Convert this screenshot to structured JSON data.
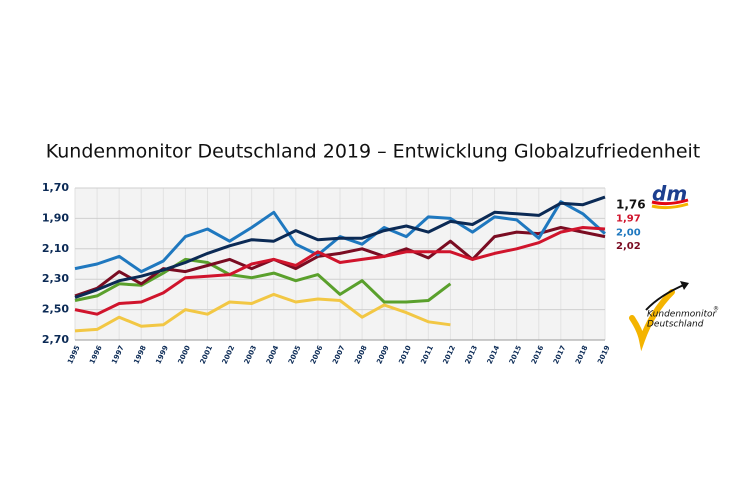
{
  "chart_data": {
    "type": "line",
    "title": "Kundenmonitor Deutschland 2019 – Entwicklung Globalzufriedenheit",
    "categories": [
      "1995",
      "1996",
      "1997",
      "1998",
      "1999",
      "2000",
      "2001",
      "2002",
      "2003",
      "2004",
      "2005",
      "2006",
      "2007",
      "2008",
      "2009",
      "2010",
      "2011",
      "2012",
      "2013",
      "2014",
      "2015",
      "2016",
      "2017",
      "2018",
      "2019"
    ],
    "ylim": [
      1.7,
      2.7
    ],
    "y_inverted": true,
    "yticks": [
      {
        "value": 1.7,
        "label": "1,70"
      },
      {
        "value": 1.9,
        "label": "1,90"
      },
      {
        "value": 2.1,
        "label": "2,10"
      },
      {
        "value": 2.3,
        "label": "2,30"
      },
      {
        "value": 2.5,
        "label": "2,50"
      },
      {
        "value": 2.7,
        "label": "2,70"
      }
    ],
    "grid": true,
    "logo_text": [
      "Kundenmonitor",
      "®",
      "Deutschland"
    ],
    "series": [
      {
        "name": "dm",
        "color": "#0b2a55",
        "values": [
          2.42,
          2.37,
          2.31,
          2.28,
          2.24,
          2.19,
          2.13,
          2.08,
          2.04,
          2.05,
          1.98,
          2.04,
          2.03,
          2.03,
          1.98,
          1.95,
          1.99,
          1.92,
          1.94,
          1.86,
          1.87,
          1.88,
          1.8,
          1.81,
          1.76
        ],
        "value_labels": [
          null,
          null,
          null,
          null,
          null,
          null,
          null,
          null,
          null,
          null,
          null,
          null,
          null,
          null,
          null,
          null,
          null,
          null,
          null,
          null,
          null,
          null,
          null,
          null,
          "1,76"
        ]
      },
      {
        "color": "#d0142c",
        "values": [
          2.5,
          2.53,
          2.46,
          2.45,
          2.39,
          2.29,
          2.28,
          2.27,
          2.2,
          2.17,
          2.21,
          2.12,
          2.19,
          2.17,
          2.15,
          2.12,
          2.12,
          2.12,
          2.17,
          2.13,
          2.1,
          2.06,
          1.99,
          1.96,
          1.97
        ],
        "value_labels": [
          null,
          null,
          null,
          null,
          null,
          null,
          null,
          null,
          null,
          null,
          null,
          null,
          null,
          null,
          null,
          null,
          null,
          null,
          null,
          null,
          null,
          null,
          null,
          null,
          "1,97"
        ]
      },
      {
        "color": "#1f78bf",
        "values": [
          2.23,
          2.2,
          2.15,
          2.25,
          2.18,
          2.02,
          1.97,
          2.05,
          1.96,
          1.86,
          2.07,
          2.14,
          2.02,
          2.07,
          1.96,
          2.02,
          1.89,
          1.9,
          1.99,
          1.89,
          1.91,
          2.03,
          1.79,
          1.87,
          2.0
        ],
        "value_labels": [
          null,
          null,
          null,
          null,
          null,
          null,
          null,
          null,
          null,
          null,
          null,
          null,
          null,
          null,
          null,
          null,
          null,
          null,
          null,
          null,
          null,
          null,
          null,
          null,
          "2,00"
        ]
      },
      {
        "color": "#7a0c22",
        "values": [
          2.41,
          2.36,
          2.25,
          2.33,
          2.23,
          2.25,
          2.21,
          2.17,
          2.23,
          2.17,
          2.23,
          2.15,
          2.13,
          2.1,
          2.15,
          2.1,
          2.16,
          2.05,
          2.17,
          2.02,
          1.99,
          2.0,
          1.96,
          1.99,
          2.02
        ],
        "value_labels": [
          null,
          null,
          null,
          null,
          null,
          null,
          null,
          null,
          null,
          null,
          null,
          null,
          null,
          null,
          null,
          null,
          null,
          null,
          null,
          null,
          null,
          null,
          null,
          null,
          "2,02"
        ]
      },
      {
        "color": "#5aa02c",
        "values": [
          2.44,
          2.41,
          2.33,
          2.34,
          2.26,
          2.17,
          2.19,
          2.27,
          2.29,
          2.26,
          2.31,
          2.27,
          2.4,
          2.31,
          2.45,
          2.45,
          2.44,
          2.33,
          null,
          null,
          null,
          null,
          null,
          null,
          null
        ]
      },
      {
        "color": "#f2c744",
        "values": [
          2.64,
          2.63,
          2.55,
          2.61,
          2.6,
          2.5,
          2.53,
          2.45,
          2.46,
          2.4,
          2.45,
          2.43,
          2.44,
          2.55,
          2.47,
          2.52,
          2.58,
          2.6,
          null,
          null,
          null,
          null,
          null,
          null,
          null
        ]
      }
    ]
  }
}
